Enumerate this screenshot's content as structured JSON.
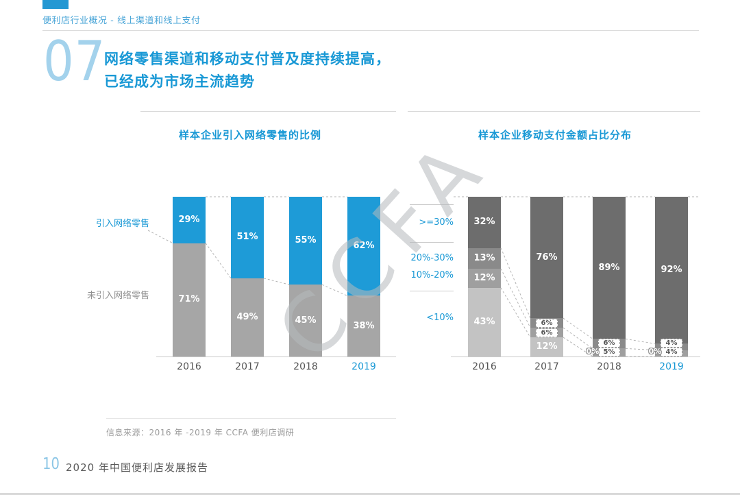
{
  "page": {
    "header": "便利店行业概况 - 线上渠道和线上支付",
    "section_number": "07",
    "title_lines": [
      "网络零售渠道和移动支付普及度持续提高，",
      "已经成为市场主流趋势"
    ],
    "watermark": "CCFA",
    "source": "信息来源：2016 年 -2019 年 CCFA 便利店调研",
    "page_number": "10",
    "footer_title": "2020 年中国便利店发展报告"
  },
  "colors": {
    "accent_blue": "#1898d5",
    "bar_blue": "#1e9bd7",
    "bar_gray": "#a6a6a6",
    "dark_gray": "#6d6d6d",
    "light_gray": "#c3c3c3"
  },
  "chart_data": [
    {
      "type": "bar",
      "stacked": true,
      "title": "样本企业引入网络零售的比例",
      "categories": [
        "2016",
        "2017",
        "2018",
        "2019"
      ],
      "series": [
        {
          "name": "引入网络零售",
          "color": "#1e9bd7",
          "values": [
            29,
            51,
            55,
            62
          ]
        },
        {
          "name": "未引入网络零售",
          "color": "#a6a6a6",
          "values": [
            71,
            49,
            45,
            38
          ]
        }
      ],
      "unit": "%",
      "ylim": [
        0,
        100
      ],
      "highlight_category": "2019"
    },
    {
      "type": "bar",
      "stacked": true,
      "title": "样本企业移动支付金额占比分布",
      "categories": [
        "2016",
        "2017",
        "2018",
        "2019"
      ],
      "axis_labels": [
        ">=30%",
        "20%-30%",
        "10%-20%",
        "<10%"
      ],
      "series": [
        {
          "name": ">=30%",
          "color": "#6d6d6d",
          "values": [
            32,
            76,
            89,
            92
          ]
        },
        {
          "name": "20%-30%",
          "color": "#8a8a8a",
          "values": [
            13,
            6,
            6,
            4
          ]
        },
        {
          "name": "10%-20%",
          "color": "#9f9f9f",
          "values": [
            12,
            6,
            5,
            4
          ]
        },
        {
          "name": "<10%",
          "color": "#c3c3c3",
          "values": [
            43,
            12,
            0,
            0
          ]
        }
      ],
      "unit": "%",
      "ylim": [
        0,
        100
      ],
      "highlight_category": "2019"
    }
  ]
}
